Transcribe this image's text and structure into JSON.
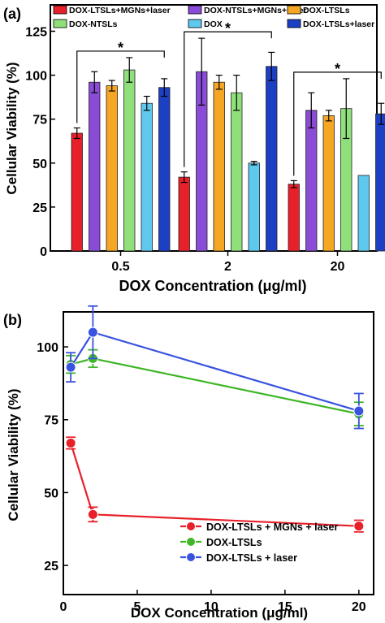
{
  "chart_data": [
    {
      "panel_label": "(a)",
      "type": "bar",
      "xlabel": "DOX Concentration (μg/ml)",
      "ylabel": "Cellular Viability (%)",
      "ylim": [
        0,
        140
      ],
      "yticks": [
        0,
        25,
        50,
        75,
        100,
        125
      ],
      "categories": [
        "0.5",
        "2",
        "20"
      ],
      "legend_position": "top",
      "series": [
        {
          "name": "DOX-LTSLs+MGNs+laser",
          "color": "#e8202a",
          "values": [
            67,
            42,
            38
          ],
          "errors": [
            3,
            3,
            2
          ]
        },
        {
          "name": "DOX-NTSLs+MGNs+laser",
          "color": "#8a4bd6",
          "values": [
            96,
            102,
            80
          ],
          "errors": [
            6,
            19,
            10
          ]
        },
        {
          "name": "DOX-LTSLs",
          "color": "#f5a623",
          "values": [
            94,
            96,
            77
          ],
          "errors": [
            3,
            4,
            3
          ]
        },
        {
          "name": "DOX-NTSLs",
          "color": "#8fe07a",
          "values": [
            103,
            90,
            81
          ],
          "errors": [
            7,
            10,
            17
          ]
        },
        {
          "name": "DOX",
          "color": "#5ec8ee",
          "values": [
            84,
            50,
            43
          ],
          "errors": [
            4,
            1,
            0
          ]
        },
        {
          "name": "DOX-LTSLs+laser",
          "color": "#1d3fc4",
          "values": [
            93,
            105,
            78
          ],
          "errors": [
            5,
            8,
            6
          ]
        }
      ],
      "significance_marker": "*"
    },
    {
      "panel_label": "(b)",
      "type": "line",
      "xlabel": "DOX Concentration (μg/ml)",
      "ylabel": "Cellular Viability (%)",
      "xlim": [
        0,
        21
      ],
      "ylim": [
        15,
        112
      ],
      "xticks": [
        0,
        5,
        10,
        15,
        20
      ],
      "yticks": [
        25,
        50,
        75,
        100
      ],
      "x": [
        0.5,
        2,
        20
      ],
      "legend_position": "bottom-right",
      "series": [
        {
          "name": "DOX-LTSLs + MGNs + laser",
          "color": "#e8202a",
          "values": [
            67,
            42.5,
            38.5
          ],
          "errors": [
            2,
            2.5,
            2
          ]
        },
        {
          "name": "DOX-LTSLs",
          "color": "#3fb527",
          "values": [
            94,
            96,
            77
          ],
          "errors": [
            3,
            3,
            4
          ]
        },
        {
          "name": "DOX-LTSLs + laser",
          "color": "#3a52e0",
          "values": [
            93,
            105,
            78
          ],
          "errors": [
            5,
            9,
            6
          ]
        }
      ]
    }
  ]
}
